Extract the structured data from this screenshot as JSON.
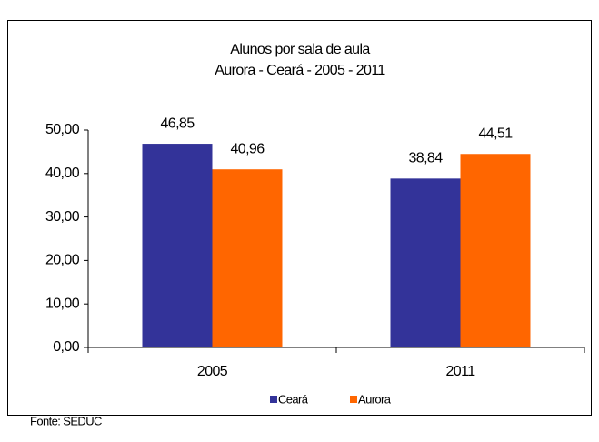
{
  "chart_data": {
    "type": "bar",
    "title": "Alunos por sala de aula",
    "subtitle": "Aurora - Ceará - 2005 - 2011",
    "categories": [
      "2005",
      "2011"
    ],
    "series": [
      {
        "name": "Ceará",
        "color": "#333399",
        "values": [
          46.85,
          38.84
        ],
        "value_labels": [
          "46,85",
          "38,84"
        ]
      },
      {
        "name": "Aurora",
        "color": "#ff6600",
        "values": [
          40.96,
          44.51
        ],
        "value_labels": [
          "40,96",
          "44,51"
        ]
      }
    ],
    "ylim": [
      0,
      50
    ],
    "yticks": [
      {
        "value": 0,
        "label": "0,00"
      },
      {
        "value": 10,
        "label": "10,00"
      },
      {
        "value": 20,
        "label": "20,00"
      },
      {
        "value": 30,
        "label": "30,00"
      },
      {
        "value": 40,
        "label": "40,00"
      },
      {
        "value": 50,
        "label": "50,00"
      }
    ],
    "legend": "bottom",
    "source": "Fonte: SEDUC"
  }
}
